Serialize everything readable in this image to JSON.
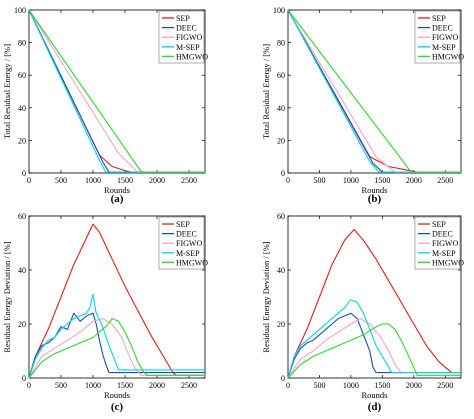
{
  "figure": {
    "colors": {
      "SEP": "#e41a1c",
      "DEEC": "#1f4fa8",
      "FIGWO": "#f2a6c8",
      "M-SEP": "#00d2ee",
      "HMGWO": "#2ed62e"
    }
  },
  "chart_data": [
    {
      "type": "line",
      "panel_label": "(a)",
      "xlabel": "Rounds",
      "ylabel": "Total Residual Energy / [%]",
      "xlim": [
        0,
        2750
      ],
      "ylim": [
        0,
        100
      ],
      "xticks": [
        0,
        500,
        1000,
        1500,
        2000,
        2500
      ],
      "yticks": [
        0,
        20,
        40,
        60,
        80,
        100
      ],
      "legend_position": "top-right",
      "series": [
        {
          "name": "SEP",
          "x": [
            0,
            1100,
            1300,
            1500,
            1600,
            2750
          ],
          "y": [
            100,
            11,
            4,
            1.5,
            0.5,
            0.5
          ]
        },
        {
          "name": "DEEC",
          "x": [
            0,
            1150,
            1250,
            2750
          ],
          "y": [
            100,
            7,
            0.5,
            0.5
          ]
        },
        {
          "name": "FIGWO",
          "x": [
            0,
            1400,
            1700,
            2750
          ],
          "y": [
            100,
            12,
            0.5,
            0.5
          ]
        },
        {
          "name": "M-SEP",
          "x": [
            0,
            1100,
            1200,
            2750
          ],
          "y": [
            100,
            8,
            0.5,
            0.5
          ]
        },
        {
          "name": "HMGWO",
          "x": [
            0,
            1750,
            1800,
            2750
          ],
          "y": [
            100,
            1,
            0.5,
            0.5
          ]
        }
      ]
    },
    {
      "type": "line",
      "panel_label": "(b)",
      "xlabel": "Rounds",
      "ylabel": "Total Residual Energy / [%]",
      "xlim": [
        0,
        2750
      ],
      "ylim": [
        0,
        100
      ],
      "xticks": [
        0,
        500,
        1000,
        1500,
        2000,
        2500
      ],
      "yticks": [
        0,
        20,
        40,
        60,
        80,
        100
      ],
      "legend_position": "top-right",
      "series": [
        {
          "name": "SEP",
          "x": [
            0,
            1300,
            1600,
            2000,
            2050,
            2750
          ],
          "y": [
            100,
            10,
            4,
            1,
            0.5,
            0.5
          ]
        },
        {
          "name": "DEEC",
          "x": [
            0,
            1350,
            1500,
            2750
          ],
          "y": [
            100,
            6,
            0.5,
            0.5
          ]
        },
        {
          "name": "FIGWO",
          "x": [
            0,
            1400,
            1700,
            2750
          ],
          "y": [
            100,
            10,
            0.5,
            0.5
          ]
        },
        {
          "name": "M-SEP",
          "x": [
            0,
            1300,
            1450,
            2750
          ],
          "y": [
            100,
            7,
            0.5,
            0.5
          ]
        },
        {
          "name": "HMGWO",
          "x": [
            0,
            1950,
            2000,
            2750
          ],
          "y": [
            100,
            1,
            0.5,
            0.5
          ]
        }
      ]
    },
    {
      "type": "line",
      "panel_label": "(c)",
      "xlabel": "Rounds",
      "ylabel": "Residual Energy Deviation / [%]",
      "xlim": [
        0,
        2750
      ],
      "ylim": [
        0,
        60
      ],
      "xticks": [
        0,
        500,
        1000,
        1500,
        2000,
        2500
      ],
      "yticks": [
        0,
        20,
        40,
        60
      ],
      "legend_position": "top-right",
      "series": [
        {
          "name": "SEP",
          "x": [
            0,
            100,
            300,
            500,
            700,
            900,
            1000,
            1100,
            1300,
            1500,
            1700,
            1900,
            2100,
            2250,
            2300,
            2750
          ],
          "y": [
            0,
            8,
            18,
            30,
            42,
            52,
            57,
            54,
            44,
            34,
            25,
            16,
            8,
            2,
            1,
            1
          ]
        },
        {
          "name": "DEEC",
          "x": [
            0,
            100,
            200,
            300,
            400,
            500,
            600,
            700,
            800,
            900,
            1000,
            1050,
            1100,
            1150,
            1200,
            1250,
            2750
          ],
          "y": [
            0,
            8,
            12,
            13,
            15,
            19,
            18,
            24,
            21,
            23,
            24,
            20,
            14,
            9,
            5,
            2,
            2
          ]
        },
        {
          "name": "FIGWO",
          "x": [
            0,
            200,
            400,
            600,
            800,
            1000,
            1150,
            1300,
            1450,
            1550,
            1650,
            1750,
            2750
          ],
          "y": [
            0,
            8,
            11,
            14,
            17,
            21,
            22,
            20,
            15,
            9,
            4,
            1,
            1
          ]
        },
        {
          "name": "M-SEP",
          "x": [
            0,
            100,
            200,
            300,
            400,
            500,
            600,
            700,
            800,
            900,
            950,
            1000,
            1050,
            1150,
            1250,
            1350,
            1400,
            2750
          ],
          "y": [
            0,
            7,
            11,
            14,
            15,
            18,
            20,
            22,
            23,
            24,
            26,
            31,
            24,
            19,
            12,
            6,
            3,
            3
          ]
        },
        {
          "name": "HMGWO",
          "x": [
            0,
            200,
            400,
            600,
            800,
            1000,
            1200,
            1300,
            1400,
            1500,
            1600,
            1700,
            1800,
            1850,
            2750
          ],
          "y": [
            0,
            6,
            9,
            11,
            13,
            15,
            19,
            22,
            21,
            17,
            12,
            6,
            2,
            1,
            1
          ]
        }
      ]
    },
    {
      "type": "line",
      "panel_label": "(d)",
      "xlabel": "Rounds",
      "ylabel": "Residual Energy Deviation / [%]",
      "xlim": [
        0,
        2750
      ],
      "ylim": [
        0,
        60
      ],
      "xticks": [
        0,
        500,
        1000,
        1500,
        2000,
        2500
      ],
      "yticks": [
        0,
        20,
        40,
        60
      ],
      "legend_position": "top-right",
      "series": [
        {
          "name": "SEP",
          "x": [
            0,
            100,
            300,
            500,
            700,
            900,
            1050,
            1200,
            1400,
            1600,
            1800,
            2000,
            2200,
            2400,
            2600,
            2750
          ],
          "y": [
            0,
            8,
            18,
            30,
            42,
            51,
            55,
            51,
            44,
            36,
            28,
            20,
            12,
            6,
            2,
            2
          ]
        },
        {
          "name": "DEEC",
          "x": [
            0,
            100,
            200,
            300,
            400,
            500,
            600,
            700,
            800,
            900,
            1000,
            1100,
            1200,
            1300,
            1350,
            1400,
            2750
          ],
          "y": [
            0,
            7,
            11,
            13,
            14,
            16,
            18,
            20,
            22,
            23,
            24,
            22,
            16,
            10,
            4,
            2,
            2
          ]
        },
        {
          "name": "FIGWO",
          "x": [
            0,
            200,
            400,
            600,
            800,
            1000,
            1150,
            1300,
            1450,
            1600,
            1700,
            1800,
            2750
          ],
          "y": [
            0,
            7,
            10,
            14,
            17,
            20,
            22,
            20,
            16,
            10,
            5,
            2,
            2
          ]
        },
        {
          "name": "M-SEP",
          "x": [
            0,
            100,
            200,
            300,
            400,
            500,
            600,
            700,
            800,
            900,
            1000,
            1100,
            1200,
            1300,
            1400,
            1500,
            1600,
            1650,
            2750
          ],
          "y": [
            0,
            8,
            12,
            14,
            16,
            18,
            20,
            22,
            24,
            26,
            29,
            28,
            24,
            18,
            12,
            8,
            4,
            2,
            2
          ]
        },
        {
          "name": "HMGWO",
          "x": [
            0,
            200,
            400,
            600,
            800,
            1000,
            1200,
            1400,
            1500,
            1600,
            1700,
            1800,
            1900,
            2000,
            2050,
            2750
          ],
          "y": [
            0,
            5,
            8,
            10,
            12,
            14,
            16,
            19,
            20,
            20,
            18,
            14,
            9,
            4,
            1,
            1
          ]
        }
      ]
    }
  ]
}
